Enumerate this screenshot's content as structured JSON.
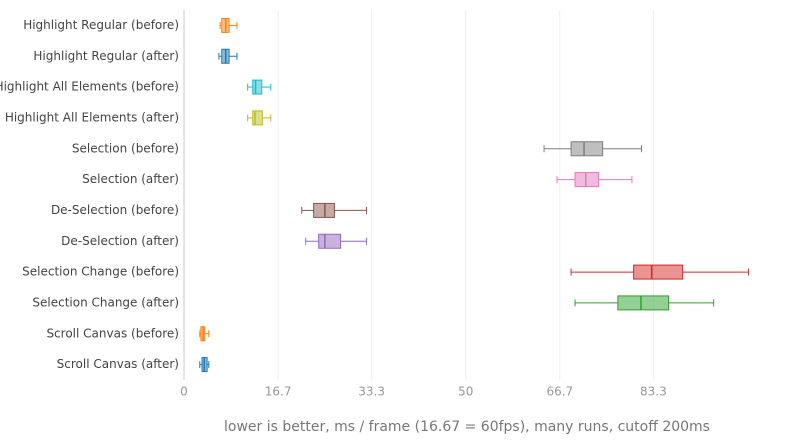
{
  "chart_data": {
    "type": "box",
    "orientation": "horizontal",
    "x_label": "lower is better, ms / frame (16.67 = 60fps), many runs, cutoff 200ms",
    "xlim": [
      0,
      104
    ],
    "xticks": [
      0,
      16.7,
      33.3,
      50,
      66.7,
      83.3
    ],
    "grid": true,
    "series": [
      {
        "name": "Highlight Regular (before)",
        "color": "#ff7f0e",
        "min": 6.4,
        "q1": 6.7,
        "median": 7.4,
        "q3": 8.0,
        "max": 9.4
      },
      {
        "name": "Highlight Regular (after)",
        "color": "#1f77b4",
        "min": 6.2,
        "q1": 6.7,
        "median": 7.4,
        "q3": 8.0,
        "max": 9.4
      },
      {
        "name": "Highlight All Elements (before)",
        "color": "#17becf",
        "min": 11.3,
        "q1": 12.2,
        "median": 12.7,
        "q3": 13.8,
        "max": 15.4
      },
      {
        "name": "Highlight All Elements (after)",
        "color": "#bcbd22",
        "min": 11.3,
        "q1": 12.2,
        "median": 12.6,
        "q3": 13.9,
        "max": 15.4
      },
      {
        "name": "Selection (before)",
        "color": "#7f7f7f",
        "min": 63.9,
        "q1": 68.7,
        "median": 71.0,
        "q3": 74.3,
        "max": 81.2
      },
      {
        "name": "Selection (after)",
        "color": "#e377c2",
        "min": 66.2,
        "q1": 69.4,
        "median": 71.3,
        "q3": 73.6,
        "max": 79.5
      },
      {
        "name": "De-Selection (before)",
        "color": "#8c564b",
        "min": 20.9,
        "q1": 23.0,
        "median": 25.0,
        "q3": 26.7,
        "max": 32.4
      },
      {
        "name": "De-Selection (after)",
        "color": "#9467bd",
        "min": 21.6,
        "q1": 23.9,
        "median": 25.0,
        "q3": 27.8,
        "max": 32.4
      },
      {
        "name": "Selection Change (before)",
        "color": "#d62728",
        "min": 68.7,
        "q1": 79.8,
        "median": 83.0,
        "q3": 88.5,
        "max": 100.2
      },
      {
        "name": "Selection Change (after)",
        "color": "#2ca02c",
        "min": 69.4,
        "q1": 77.0,
        "median": 81.1,
        "q3": 86.0,
        "max": 94.0
      },
      {
        "name": "Scroll Canvas (before)",
        "color": "#ff7f0e",
        "min": 2.8,
        "q1": 3.0,
        "median": 3.4,
        "q3": 3.7,
        "max": 4.4
      },
      {
        "name": "Scroll Canvas (after)",
        "color": "#1f77b4",
        "min": 2.8,
        "q1": 3.2,
        "median": 3.6,
        "q3": 4.1,
        "max": 4.4
      }
    ]
  }
}
